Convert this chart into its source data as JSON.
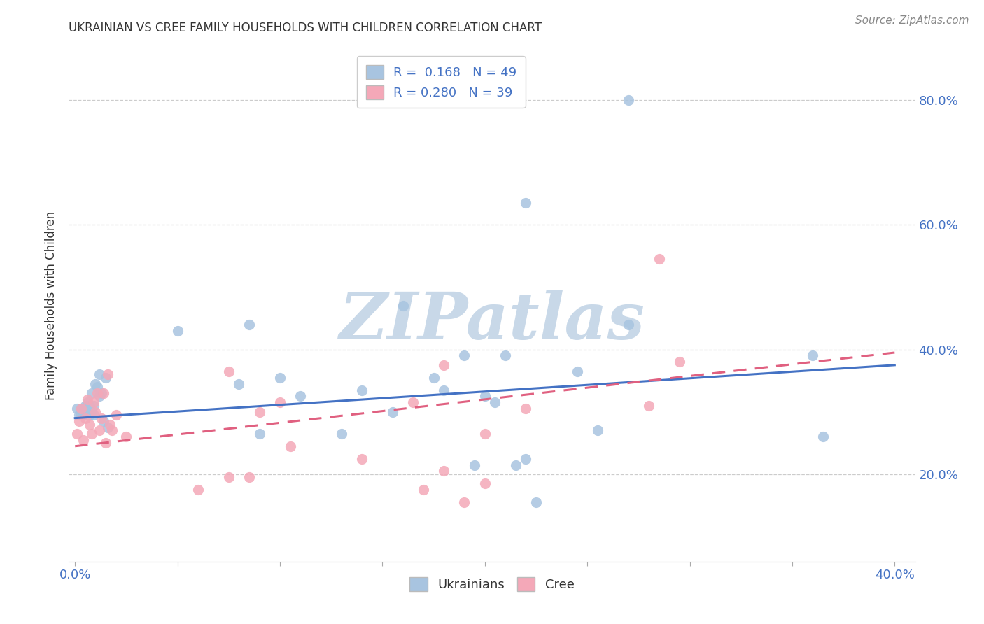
{
  "title": "UKRAINIAN VS CREE FAMILY HOUSEHOLDS WITH CHILDREN CORRELATION CHART",
  "source": "Source: ZipAtlas.com",
  "xlim": [
    -0.003,
    0.41
  ],
  "ylim": [
    0.06,
    0.88
  ],
  "ukrainian_R": 0.168,
  "ukrainian_N": 49,
  "cree_R": 0.28,
  "cree_N": 39,
  "ukrainian_color": "#a8c4e0",
  "cree_color": "#f4a8b8",
  "ukrainian_line_color": "#4472C4",
  "cree_line_color": "#E06080",
  "watermark": "ZIPatlas",
  "watermark_color": "#c8d8e8",
  "ukrainians_x": [
    0.001,
    0.002,
    0.003,
    0.003,
    0.004,
    0.005,
    0.006,
    0.006,
    0.007,
    0.007,
    0.008,
    0.008,
    0.009,
    0.009,
    0.01,
    0.011,
    0.012,
    0.012,
    0.013,
    0.014,
    0.015,
    0.016,
    0.05,
    0.08,
    0.085,
    0.09,
    0.1,
    0.11,
    0.13,
    0.14,
    0.155,
    0.16,
    0.175,
    0.18,
    0.19,
    0.195,
    0.2,
    0.205,
    0.21,
    0.215,
    0.22,
    0.225,
    0.245,
    0.255,
    0.27,
    0.36,
    0.365,
    0.22,
    0.27
  ],
  "ukrainians_y": [
    0.305,
    0.295,
    0.305,
    0.295,
    0.295,
    0.31,
    0.295,
    0.315,
    0.295,
    0.31,
    0.3,
    0.33,
    0.295,
    0.31,
    0.345,
    0.34,
    0.325,
    0.36,
    0.33,
    0.285,
    0.355,
    0.275,
    0.43,
    0.345,
    0.44,
    0.265,
    0.355,
    0.325,
    0.265,
    0.335,
    0.3,
    0.47,
    0.355,
    0.335,
    0.39,
    0.215,
    0.325,
    0.315,
    0.39,
    0.215,
    0.225,
    0.155,
    0.365,
    0.27,
    0.44,
    0.39,
    0.26,
    0.635,
    0.8
  ],
  "cree_x": [
    0.001,
    0.002,
    0.003,
    0.004,
    0.005,
    0.006,
    0.007,
    0.008,
    0.009,
    0.01,
    0.011,
    0.012,
    0.013,
    0.014,
    0.015,
    0.016,
    0.017,
    0.018,
    0.02,
    0.025,
    0.06,
    0.075,
    0.085,
    0.09,
    0.1,
    0.105,
    0.14,
    0.165,
    0.17,
    0.18,
    0.19,
    0.2,
    0.2,
    0.22,
    0.28,
    0.285,
    0.295,
    0.075,
    0.18
  ],
  "cree_y": [
    0.265,
    0.285,
    0.305,
    0.255,
    0.29,
    0.32,
    0.28,
    0.265,
    0.315,
    0.3,
    0.33,
    0.27,
    0.29,
    0.33,
    0.25,
    0.36,
    0.28,
    0.27,
    0.295,
    0.26,
    0.175,
    0.195,
    0.195,
    0.3,
    0.315,
    0.245,
    0.225,
    0.315,
    0.175,
    0.205,
    0.155,
    0.265,
    0.185,
    0.305,
    0.31,
    0.545,
    0.38,
    0.365,
    0.375
  ],
  "ukrainian_line_x0": 0.0,
  "ukrainian_line_y0": 0.29,
  "ukrainian_line_x1": 0.4,
  "ukrainian_line_y1": 0.375,
  "cree_line_x0": 0.0,
  "cree_line_y0": 0.245,
  "cree_line_x1": 0.4,
  "cree_line_y1": 0.395,
  "background_color": "#ffffff",
  "grid_color": "#cccccc"
}
